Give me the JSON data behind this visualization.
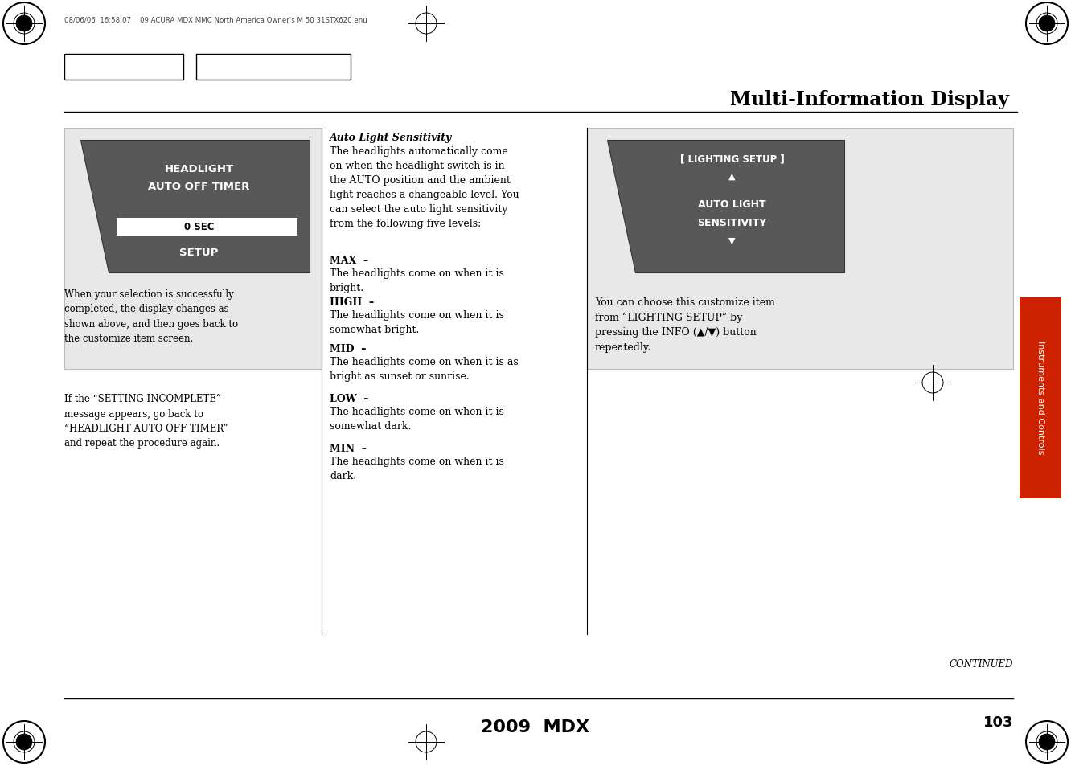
{
  "bg_color": "#ffffff",
  "title": "Multi-Information Display",
  "footer_model": "2009  MDX",
  "footer_page": "103",
  "continued": "CONTINUED",
  "header_text": "08/06/06  16:58:07    09 ACURA MDX MMC North America Owner's M 50 31STX620 enu",
  "sidebar_text": "Instruments and Controls",
  "sidebar_color": "#cc2200",
  "display_bg": "#595959",
  "display1_line1": "HEADLIGHT",
  "display1_line2": "AUTO OFF TIMER",
  "display1_value": "0 SEC",
  "display1_setup": "SETUP",
  "display2_line1": "[ LIGHTING SETUP ]",
  "display2_up": "▲",
  "display2_line2": "AUTO LIGHT",
  "display2_line3": "SENSITIVITY",
  "display2_down": "▼",
  "left_caption1": "When your selection is successfully\ncompleted, the display changes as\nshown above, and then goes back to\nthe customize item screen.",
  "left_caption2": "If the “SETTING INCOMPLETE”\nmessage appears, go back to\n“HEADLIGHT AUTO OFF TIMER”\nand repeat the procedure again.",
  "middle_title": "Auto Light Sensitivity",
  "middle_body": "The headlights automatically come\non when the headlight switch is in\nthe AUTO position and the ambient\nlight reaches a changeable level. You\ncan select the auto light sensitivity\nfrom the following five levels:",
  "levels": [
    [
      "MAX  –",
      "The headlights come on when it is\nbright."
    ],
    [
      "HIGH  –",
      "The headlights come on when it is\nsomewhat bright."
    ],
    [
      "MID  –",
      "The headlights come on when it is as\nbright as sunset or sunrise."
    ],
    [
      "LOW  –",
      "The headlights come on when it is\nsomewhat dark."
    ],
    [
      "MIN  –",
      "The headlights come on when it is\ndark."
    ]
  ],
  "right_caption": "You can choose this customize item\nfrom “LIGHTING SETUP” by\npressing the INFO (▲/▼) button\nrepeatedly."
}
